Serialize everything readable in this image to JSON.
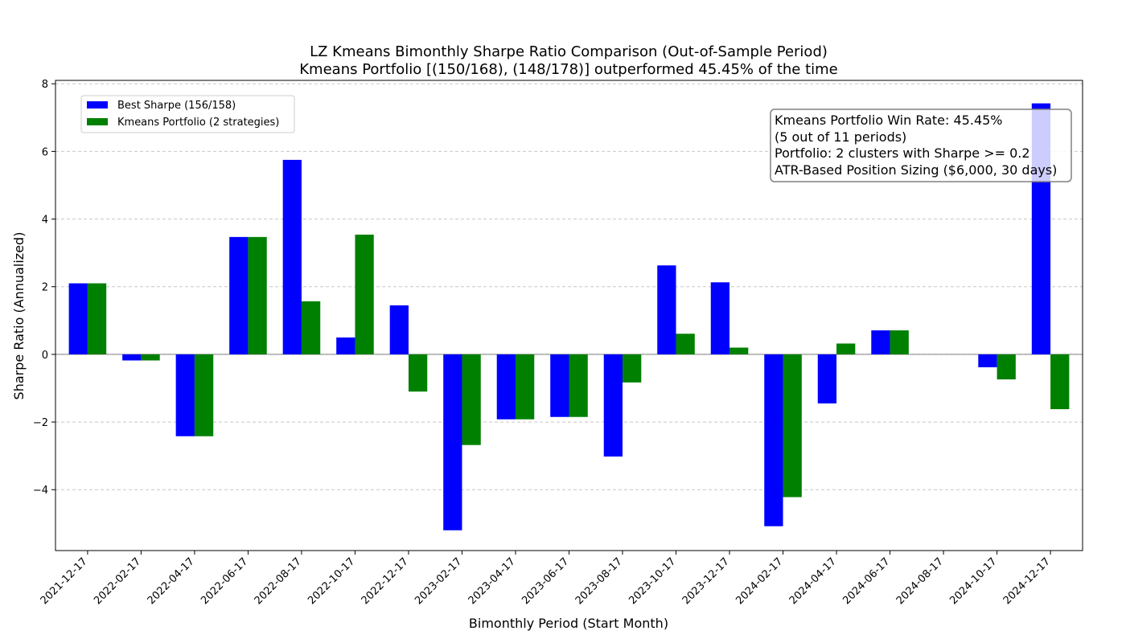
{
  "chart_data": {
    "type": "bar",
    "title": "LZ Kmeans Bimonthly Sharpe Ratio Comparison (Out-of-Sample Period)",
    "subtitle": "Kmeans Portfolio [(150/168), (148/178)] outperformed 45.45% of the time",
    "xlabel": "Bimonthly Period (Start Month)",
    "ylabel": "Sharpe Ratio (Annualized)",
    "ylim": [
      -5.8,
      8.1
    ],
    "yticks": [
      -4,
      -2,
      0,
      2,
      4,
      6,
      8
    ],
    "ytick_labels": [
      "−4",
      "−2",
      "0",
      "2",
      "4",
      "6",
      "8"
    ],
    "grid": "y-dashed",
    "legend_position": "top-left",
    "categories": [
      "2021-12-17",
      "2022-02-17",
      "2022-04-17",
      "2022-06-17",
      "2022-08-17",
      "2022-10-17",
      "2022-12-17",
      "2023-02-17",
      "2023-04-17",
      "2023-06-17",
      "2023-08-17",
      "2023-10-17",
      "2023-12-17",
      "2024-02-17",
      "2024-04-17",
      "2024-06-17",
      "2024-08-17",
      "2024-10-17",
      "2024-12-17"
    ],
    "series": [
      {
        "name": "Best Sharpe (156/158)",
        "color": "#0000ff",
        "values": [
          2.1,
          -0.18,
          -2.42,
          3.47,
          5.75,
          0.5,
          1.45,
          -5.2,
          -1.92,
          -1.85,
          -3.02,
          2.63,
          2.13,
          -5.08,
          -1.45,
          0.71,
          0.0,
          -0.38,
          7.42
        ]
      },
      {
        "name": "Kmeans Portfolio (2 strategies)",
        "color": "#008000",
        "values": [
          2.1,
          -0.18,
          -2.42,
          3.47,
          1.57,
          3.54,
          -1.1,
          -2.68,
          -1.92,
          -1.85,
          -0.83,
          0.61,
          0.2,
          -4.22,
          0.32,
          0.71,
          0.0,
          -0.74,
          -1.62
        ]
      }
    ],
    "annotation": {
      "lines": [
        "Kmeans Portfolio Win Rate: 45.45%",
        "(5 out of 11 periods)",
        "Portfolio: 2 clusters with Sharpe >= 0.2",
        "ATR-Based Position Sizing ($6,000, 30 days)"
      ],
      "position": "top-right"
    }
  }
}
